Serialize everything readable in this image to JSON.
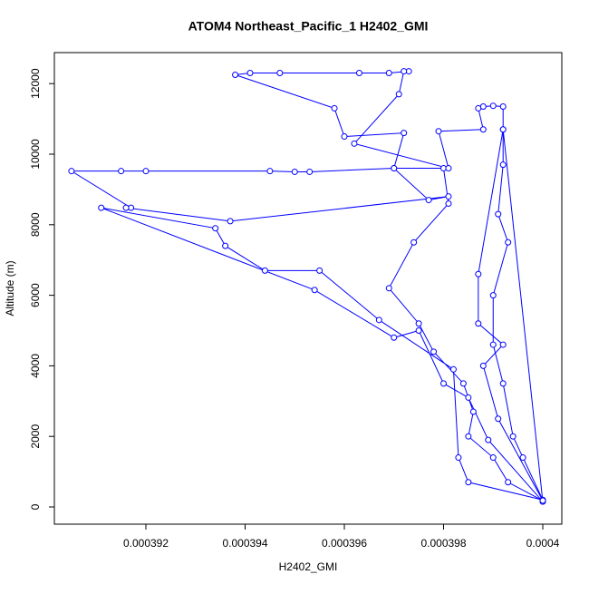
{
  "chart_data": {
    "type": "line",
    "title": "ATOM4 Northeast_Pacific_1 H2402_GMI",
    "xlabel": "H2402_GMI",
    "ylabel": "Altitude (m)",
    "color": "#0000ff",
    "markers": "open-circle",
    "x": [
      0.0004,
      0.0003993,
      0.000399,
      0.0003985,
      0.0003986,
      0.0003984,
      0.0003978,
      0.0003975,
      0.0003969,
      0.0003974,
      0.0003981,
      0.000398,
      0.000397,
      0.0003953,
      0.000395,
      0.0003945,
      0.000392,
      0.0003915,
      0.0003905,
      0.0003917,
      0.0003916,
      0.0003937,
      0.0003981,
      0.0003977,
      0.000397,
      0.0003972,
      0.000396,
      0.0003958,
      0.0003938,
      0.0003941,
      0.0003947,
      0.0003963,
      0.0003969,
      0.0003973,
      0.0003972,
      0.0003971,
      0.0003962,
      0.0003981,
      0.0003979,
      0.0003988,
      0.0003987,
      0.0003988,
      0.000399,
      0.0003992,
      0.0003992,
      0.0003992,
      0.0003991,
      0.0003993,
      0.000399,
      0.000399,
      0.0003992,
      0.0003994,
      0.0003996,
      0.0004,
      0.0003985,
      0.0003983,
      0.0003982,
      0.0003967,
      0.0003955,
      0.0003944,
      0.0003936,
      0.0003934,
      0.0003911,
      0.0003954,
      0.000397,
      0.0003975,
      0.000398,
      0.0003985,
      0.0003989,
      0.0004,
      0.0003992,
      0.0003987,
      0.0003987,
      0.0003992,
      0.0003988,
      0.0003991,
      0.0004
    ],
    "values": [
      180,
      700,
      1400,
      2000,
      2700,
      3500,
      4400,
      5200,
      6200,
      7500,
      8600,
      9600,
      9600,
      9500,
      9500,
      9520,
      9520,
      9520,
      9520,
      8480,
      8480,
      8100,
      8800,
      8700,
      9600,
      10600,
      10500,
      11300,
      12250,
      12300,
      12300,
      12300,
      12300,
      12350,
      12350,
      11700,
      10300,
      9600,
      10650,
      10700,
      11300,
      11350,
      11370,
      11350,
      10700,
      9700,
      8300,
      7500,
      6000,
      4600,
      3500,
      2000,
      1400,
      200,
      700,
      1400,
      3900,
      5300,
      6700,
      6700,
      7400,
      7900,
      8480,
      6150,
      4800,
      5000,
      3500,
      3100,
      1900,
      150,
      10700,
      6600,
      5200,
      4600,
      4000,
      2500,
      180
    ],
    "xlim": [
      0.000390155,
      0.0004003836
    ],
    "xticks": [
      0.000392,
      0.000394,
      0.000396,
      0.000398,
      0.0004
    ],
    "ylim": [
      -488,
      12879
    ],
    "yticks": [
      0,
      2000,
      4000,
      6000,
      8000,
      10000,
      12000
    ]
  }
}
